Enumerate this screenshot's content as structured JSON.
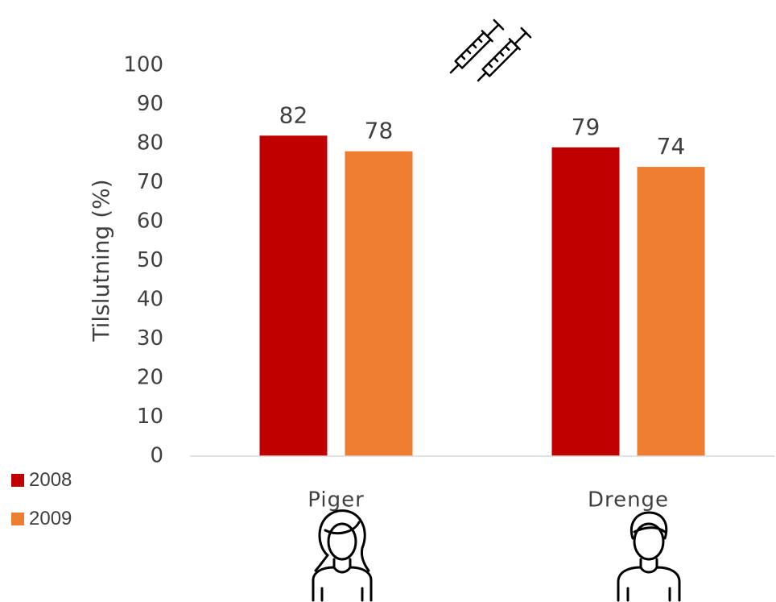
{
  "chart_data": {
    "type": "bar",
    "categories": [
      "Piger",
      "Drenge"
    ],
    "series": [
      {
        "name": "2008",
        "values": [
          82,
          79
        ],
        "color": "#C00000"
      },
      {
        "name": "2009",
        "values": [
          78,
          74
        ],
        "color": "#ED7D31"
      }
    ],
    "ylabel": "Tilslutning (%)",
    "ylim": [
      0,
      100
    ],
    "yticks": [
      0,
      10,
      20,
      30,
      40,
      50,
      60,
      70,
      80,
      90,
      100
    ],
    "grid": false,
    "legend_position": "bottom-left",
    "category_icons": [
      "girl-icon",
      "boy-icon"
    ],
    "header_icon": "syringes-icon"
  }
}
